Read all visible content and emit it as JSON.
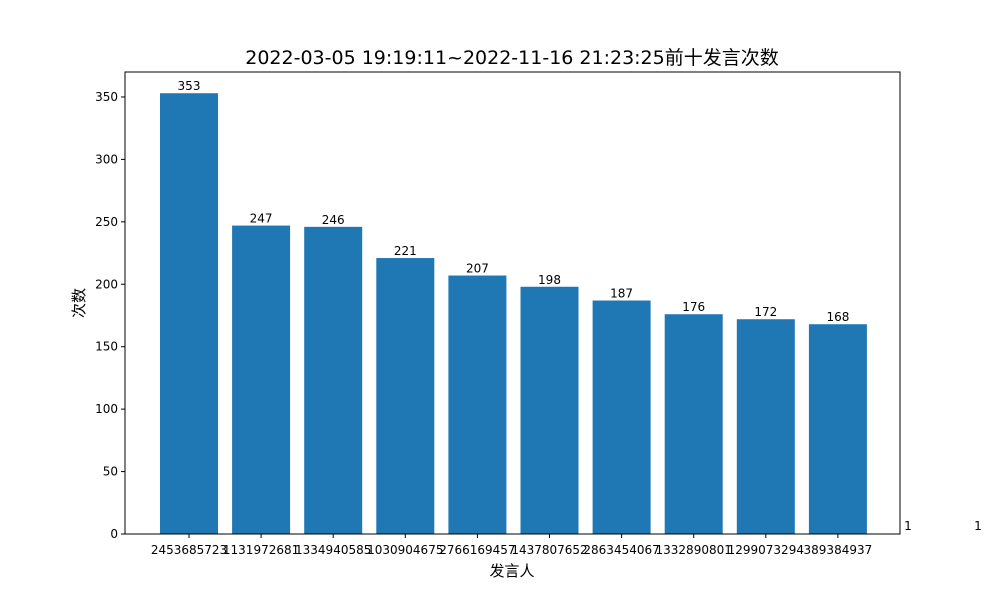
{
  "chart_data": {
    "type": "bar",
    "title": "2022-03-05 19:19:11~2022-11-16 21:23:25前十发言次数",
    "xlabel": "发言人",
    "ylabel": "次数",
    "categories": [
      "2453685723",
      "1131972681",
      "1334940585",
      "1030904675",
      "2766169457",
      "1437807652",
      "2863454067",
      "1332890801",
      "1299073294",
      "389384937"
    ],
    "values": [
      353,
      247,
      246,
      221,
      207,
      198,
      187,
      176,
      172,
      168
    ],
    "ylim": [
      0,
      370
    ],
    "yticks": [
      0,
      50,
      100,
      150,
      200,
      250,
      300,
      350
    ],
    "bar_color": "#1f77b4",
    "grid": false,
    "legend": "none",
    "side_labels": [
      "1",
      "1"
    ]
  }
}
